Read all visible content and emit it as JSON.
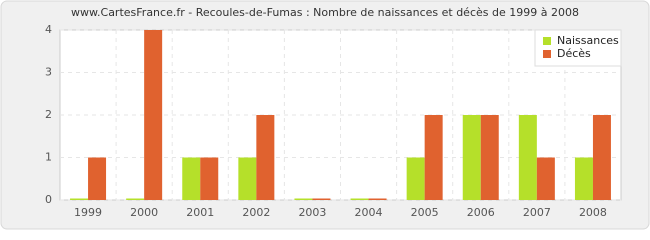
{
  "chart_data": {
    "type": "bar",
    "title": "www.CartesFrance.fr - Recoules-de-Fumas : Nombre de naissances et décès de 1999 à 2008",
    "categories": [
      "1999",
      "2000",
      "2001",
      "2002",
      "2003",
      "2004",
      "2005",
      "2006",
      "2007",
      "2008"
    ],
    "series": [
      {
        "name": "Naissances",
        "color": "#b5e02a",
        "values": [
          0,
          0,
          1,
          1,
          0,
          0,
          1,
          2,
          2,
          1
        ]
      },
      {
        "name": "Décès",
        "color": "#e0622f",
        "values": [
          1,
          4,
          1,
          2,
          0,
          0,
          2,
          2,
          1,
          2
        ]
      }
    ],
    "ylim": [
      0,
      4
    ],
    "yticks": [
      0,
      1,
      2,
      3,
      4
    ],
    "grid": true,
    "legend": "top-right"
  }
}
